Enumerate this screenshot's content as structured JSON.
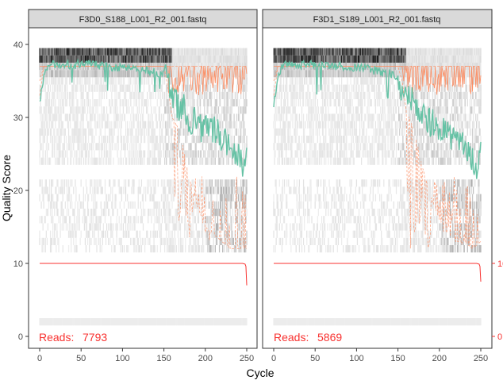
{
  "chart_data": {
    "type": "line",
    "xlabel": "Cycle",
    "ylabel": "Quality Score",
    "xlim": [
      0,
      251
    ],
    "ylim": [
      0,
      41
    ],
    "x_ticks": [
      0,
      50,
      100,
      150,
      200,
      250
    ],
    "y_ticks": [
      0,
      10,
      20,
      30,
      40
    ],
    "right_ticks": [
      0,
      10
    ],
    "colors": {
      "mean": "#66C2A5",
      "quartile": "#FC8D62",
      "median": "#FC8D62",
      "reads_line": "#F8312F",
      "strip_fill": "#D9D9D9",
      "heat_light": "#F2F2F2",
      "heat_dark": "#1A1A1A"
    },
    "panels": [
      {
        "strip": "F3D0_S188_L001_R2_001.fastq",
        "reads_label": "Reads:",
        "reads_value": "7793",
        "seed": 7,
        "mean_anchors": [
          [
            0,
            32
          ],
          [
            3,
            34
          ],
          [
            6,
            36
          ],
          [
            10,
            37
          ],
          [
            20,
            37.3
          ],
          [
            40,
            37.2
          ],
          [
            60,
            37.3
          ],
          [
            80,
            37
          ],
          [
            100,
            36.8
          ],
          [
            120,
            36.5
          ],
          [
            140,
            36.2
          ],
          [
            150,
            36
          ],
          [
            155,
            35
          ],
          [
            160,
            33
          ],
          [
            165,
            32
          ],
          [
            170,
            31
          ],
          [
            175,
            31.5
          ],
          [
            180,
            30
          ],
          [
            185,
            29.5
          ],
          [
            190,
            30
          ],
          [
            195,
            28.5
          ],
          [
            200,
            29
          ],
          [
            205,
            28
          ],
          [
            210,
            28.5
          ],
          [
            220,
            27
          ],
          [
            230,
            26
          ],
          [
            240,
            25
          ],
          [
            245,
            23
          ],
          [
            250,
            26
          ]
        ],
        "lower_anchors": [
          [
            0,
            33
          ],
          [
            5,
            37
          ],
          [
            20,
            37
          ],
          [
            150,
            37
          ],
          [
            155,
            34
          ],
          [
            160,
            30
          ],
          [
            170,
            28
          ],
          [
            180,
            22
          ],
          [
            190,
            18
          ],
          [
            200,
            15
          ],
          [
            210,
            14
          ],
          [
            220,
            13
          ],
          [
            230,
            12
          ],
          [
            240,
            12
          ],
          [
            250,
            12
          ]
        ],
        "reads_y_end": 7
      },
      {
        "strip": "F3D1_S189_L001_R2_001.fastq",
        "reads_label": "Reads:",
        "reads_value": "5869",
        "seed": 13,
        "mean_anchors": [
          [
            0,
            32
          ],
          [
            3,
            34
          ],
          [
            6,
            36
          ],
          [
            10,
            37
          ],
          [
            20,
            37.3
          ],
          [
            40,
            37.2
          ],
          [
            60,
            37.2
          ],
          [
            80,
            37
          ],
          [
            100,
            36.9
          ],
          [
            120,
            36.5
          ],
          [
            140,
            36
          ],
          [
            150,
            35.5
          ],
          [
            155,
            34
          ],
          [
            160,
            33
          ],
          [
            165,
            32.5
          ],
          [
            170,
            32
          ],
          [
            175,
            31
          ],
          [
            180,
            30.5
          ],
          [
            185,
            30
          ],
          [
            190,
            29
          ],
          [
            195,
            29.5
          ],
          [
            200,
            28.5
          ],
          [
            205,
            28
          ],
          [
            210,
            27.5
          ],
          [
            220,
            27
          ],
          [
            230,
            26
          ],
          [
            240,
            24
          ],
          [
            245,
            23.5
          ],
          [
            250,
            25
          ]
        ],
        "lower_anchors": [
          [
            0,
            33
          ],
          [
            5,
            37
          ],
          [
            20,
            37
          ],
          [
            150,
            37
          ],
          [
            155,
            35
          ],
          [
            160,
            31
          ],
          [
            170,
            28
          ],
          [
            180,
            23
          ],
          [
            190,
            19
          ],
          [
            200,
            16
          ],
          [
            210,
            14
          ],
          [
            220,
            13
          ],
          [
            230,
            13
          ],
          [
            240,
            12
          ],
          [
            250,
            13
          ]
        ],
        "reads_y_end": 7.5
      }
    ]
  }
}
